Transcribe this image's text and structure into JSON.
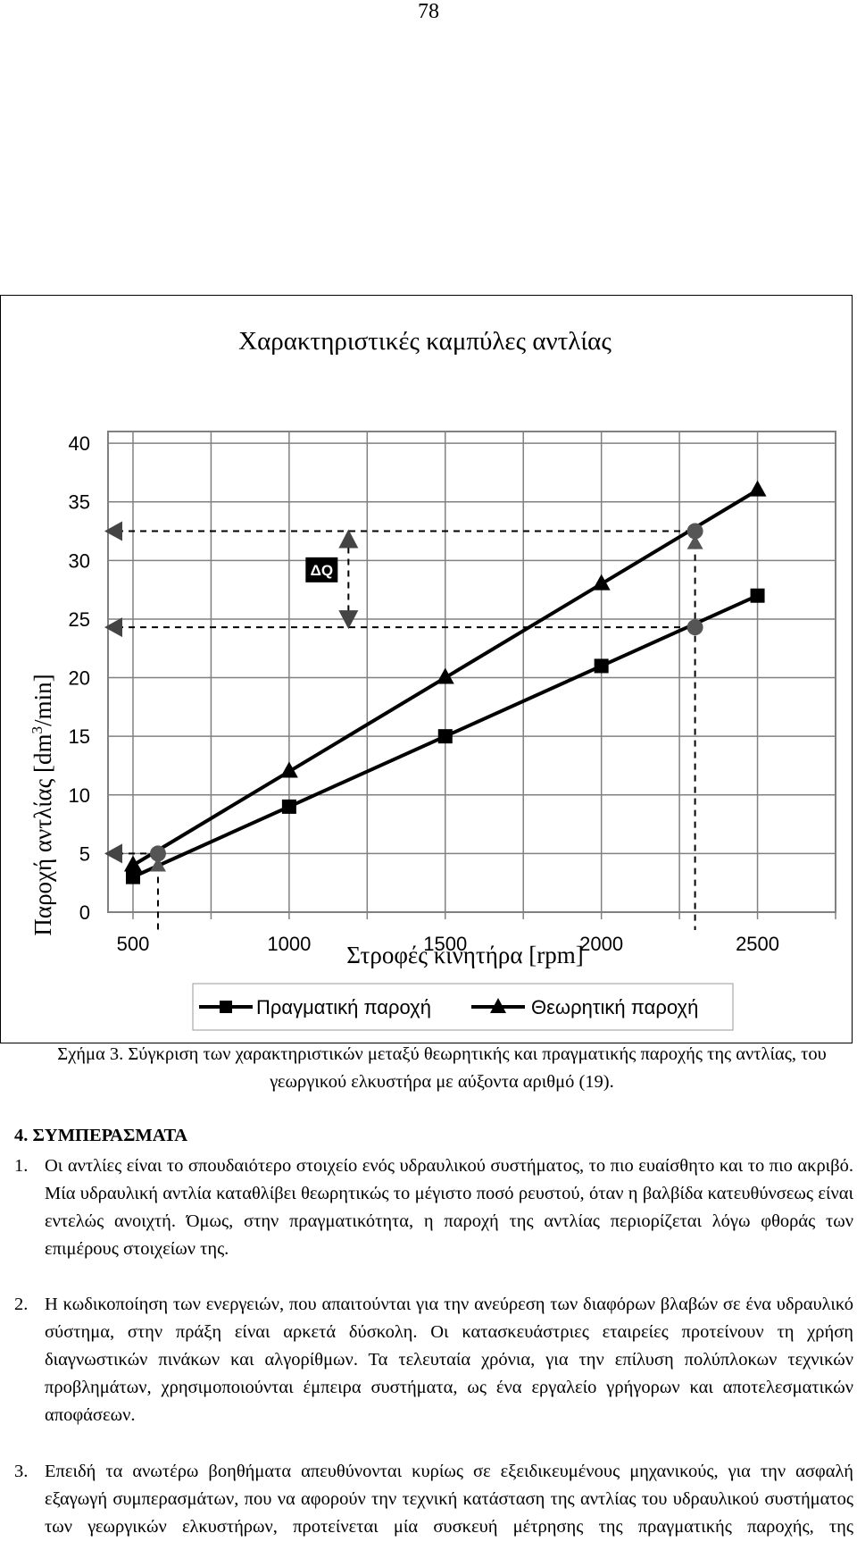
{
  "page_number": "78",
  "chart_data": {
    "type": "line",
    "title": "Χαρακτηριστικές καμπύλες αντλίας",
    "xlabel": "Στροφές κινητήρα [rpm]",
    "ylabel_parts": [
      "Παροχή αντλίας [dm",
      "3",
      "/min]"
    ],
    "xlim": [
      500,
      2500
    ],
    "ylim": [
      0,
      40
    ],
    "x_ticks": [
      500,
      1000,
      1500,
      2000,
      2500
    ],
    "y_ticks": [
      0,
      5,
      10,
      15,
      20,
      25,
      30,
      35,
      40
    ],
    "grid": true,
    "legend_position": "bottom",
    "series": [
      {
        "name": "Πραγματική παροχή",
        "marker": "square",
        "x": [
          500,
          1000,
          1500,
          2000,
          2500
        ],
        "y": [
          3,
          9,
          15,
          21,
          27
        ]
      },
      {
        "name": "Θεωρητική παροχή",
        "marker": "triangle",
        "x": [
          500,
          1000,
          1500,
          2000,
          2500
        ],
        "y": [
          4,
          12,
          20,
          28,
          36
        ]
      }
    ],
    "reference_points": [
      {
        "x": 580,
        "y": 5
      },
      {
        "x": 580,
        "y": 4
      },
      {
        "x": 2300,
        "y": 32.5
      },
      {
        "x": 2300,
        "y": 31.5
      },
      {
        "x": 2300,
        "y": 24.3
      }
    ],
    "reference_levels": [
      5,
      24.3,
      32.5
    ],
    "delta_annotation": {
      "label": "ΔQ",
      "x": 1190,
      "y_top": 32.5,
      "y_bottom": 24.3
    }
  },
  "caption": "Σχήμα 3. Σύγκριση των χαρακτηριστικών μεταξύ θεωρητικής και πραγματικής παροχής της αντλίας, του γεωργικού ελκυστήρα με αύξοντα αριθμό (19).",
  "section_heading": "4. ΣΥΜΠΕΡΑΣΜΑΤΑ",
  "items": [
    {
      "number": "1.",
      "text": "Οι αντλίες είναι το σπουδαιότερο στοιχείο ενός υδραυλικού συστήματος, το πιο ευαίσθητο και το πιο ακριβό. Μία υδραυλική αντλία καταθλίβει θεωρητικώς το μέγιστο ποσό ρευστού, όταν η βαλβίδα κατευθύνσεως είναι εντελώς ανοιχτή. Όμως, στην πραγματικότητα, η παροχή της αντλίας περιορίζεται λόγω φθοράς των επιμέρους στοιχείων της."
    },
    {
      "number": "2.",
      "text": "Η κωδικοποίηση των ενεργειών, που απαιτούνται για την ανεύρεση των διαφόρων βλαβών σε ένα υδραυλικό σύστημα, στην πράξη είναι αρκετά δύσκολη. Οι κατασκευάστριες εταιρείες προτείνουν τη χρήση διαγνωστικών πινάκων και αλγορίθμων. Τα τελευταία χρόνια, για την επίλυση πολύπλοκων τεχνικών προβλημάτων, χρησιμοποιούνται έμπειρα συστήματα, ως ένα εργαλείο γρήγορων και αποτελεσματικών αποφάσεων."
    },
    {
      "number": "3.",
      "text": "Επειδή τα ανωτέρω βοηθήματα απευθύνονται κυρίως σε εξειδικευμένους μηχανικούς, για την ασφαλή εξαγωγή συμπερασμάτων, που να αφορούν την τεχνική κατάσταση της αντλίας του υδραυλικού συστήματος των γεωργικών ελκυστήρων, προτείνεται μία συσκευή μέτρησης της πραγματικής παροχής, της"
    }
  ]
}
